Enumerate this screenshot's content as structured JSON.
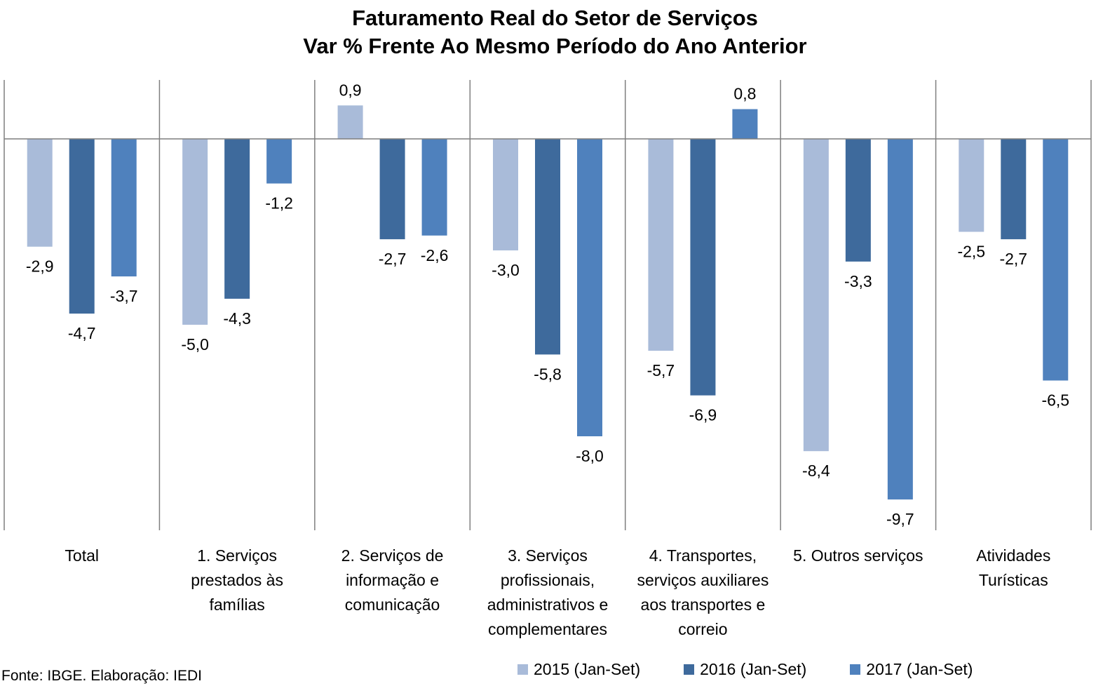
{
  "chart_data": {
    "type": "bar",
    "title": "Faturamento Real do Setor de Serviços",
    "subtitle": "Var % Frente Ao Mesmo Período do Ano Anterior",
    "categories": [
      "Total",
      "1. Serviços prestados às famílias",
      "2. Serviços de informação e comunicação",
      "3. Serviços profissionais, administrativos e complementares",
      "4. Transportes, serviços auxiliares aos transportes e correio",
      "5. Outros serviços",
      "Atividades Turísticas"
    ],
    "category_lines": [
      [
        "Total"
      ],
      [
        "1. Serviços",
        "prestados às",
        "famílias"
      ],
      [
        "2. Serviços de",
        "informação e",
        "comunicação"
      ],
      [
        "3. Serviços",
        "profissionais,",
        "administrativos e",
        "complementares"
      ],
      [
        "4. Transportes,",
        "serviços auxiliares",
        "aos transportes e",
        "correio"
      ],
      [
        "5. Outros serviços"
      ],
      [
        "Atividades",
        "Turísticas"
      ]
    ],
    "series": [
      {
        "name": "2015 (Jan-Set)",
        "color": "#a9bbd9",
        "values": [
          -2.9,
          -5.0,
          0.9,
          -3.0,
          -5.7,
          -8.4,
          -2.5
        ]
      },
      {
        "name": "2016 (Jan-Set)",
        "color": "#3e6a9c",
        "values": [
          -4.7,
          -4.3,
          -2.7,
          -5.8,
          -6.9,
          -3.3,
          -2.7
        ]
      },
      {
        "name": "2017 (Jan-Set)",
        "color": "#4f81bd",
        "values": [
          -3.7,
          -1.2,
          -2.6,
          -8.0,
          0.8,
          -9.7,
          -6.5
        ]
      }
    ],
    "data_labels": [
      [
        "-2,9",
        "-5,0",
        "0,9",
        "-3,0",
        "-5,7",
        "-8,4",
        "-2,5"
      ],
      [
        "-4,7",
        "-4,3",
        "-2,7",
        "-5,8",
        "-6,9",
        "-3,3",
        "-2,7"
      ],
      [
        "-3,7",
        "-1,2",
        "-2,6",
        "-8,0",
        "0,8",
        "-9,7",
        "-6,5"
      ]
    ],
    "ylim": [
      -10.5,
      1.5
    ],
    "grid": false,
    "legend_position": "bottom-right"
  },
  "source_note": "Fonte: IBGE. Elaboração: IEDI"
}
